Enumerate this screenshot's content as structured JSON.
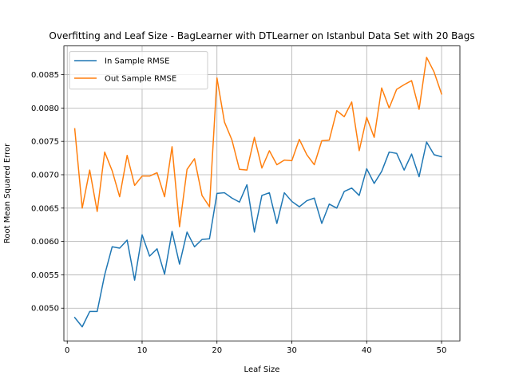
{
  "chart_data": {
    "type": "line",
    "title": "Overfitting and Leaf Size - BagLearner with DTLearner on Istanbul Data Set with 20 Bags",
    "xlabel": "Leaf Size",
    "ylabel": "Root Mean Squared Error",
    "xlim": [
      -0.45,
      52.45
    ],
    "ylim": [
      0.00451,
      0.00893
    ],
    "xticks": [
      0,
      10,
      20,
      30,
      40,
      50
    ],
    "yticks": [
      0.005,
      0.0055,
      0.006,
      0.0065,
      0.007,
      0.0075,
      0.008,
      0.0085
    ],
    "ytick_labels": [
      "0.0050",
      "0.0055",
      "0.0060",
      "0.0065",
      "0.0070",
      "0.0075",
      "0.0080",
      "0.0085"
    ],
    "grid": true,
    "legend_position": "top-left",
    "x": [
      1,
      2,
      3,
      4,
      5,
      6,
      7,
      8,
      9,
      10,
      11,
      12,
      13,
      14,
      15,
      16,
      17,
      18,
      19,
      20,
      21,
      22,
      23,
      24,
      25,
      26,
      27,
      28,
      29,
      30,
      31,
      32,
      33,
      34,
      35,
      36,
      37,
      38,
      39,
      40,
      41,
      42,
      43,
      44,
      45,
      46,
      47,
      48,
      49,
      50
    ],
    "series": [
      {
        "name": "In Sample RMSE",
        "color": "#1f77b4",
        "values": [
          0.00486,
          0.00472,
          0.00495,
          0.00495,
          0.0055,
          0.00592,
          0.0059,
          0.00602,
          0.00542,
          0.0061,
          0.00578,
          0.00589,
          0.00551,
          0.00615,
          0.00566,
          0.00614,
          0.00592,
          0.00603,
          0.00604,
          0.00672,
          0.00673,
          0.00665,
          0.00659,
          0.00685,
          0.00614,
          0.00669,
          0.00673,
          0.00627,
          0.00673,
          0.0066,
          0.00652,
          0.00661,
          0.00665,
          0.00627,
          0.00656,
          0.0065,
          0.00675,
          0.0068,
          0.00669,
          0.00709,
          0.00687,
          0.00705,
          0.00734,
          0.00732,
          0.00707,
          0.00731,
          0.00697,
          0.00749,
          0.0073,
          0.00727
        ]
      },
      {
        "name": "Out Sample RMSE",
        "color": "#ff7f0e",
        "values": [
          0.00769,
          0.0065,
          0.00707,
          0.00645,
          0.00734,
          0.00706,
          0.00667,
          0.00729,
          0.00684,
          0.00698,
          0.00698,
          0.00703,
          0.00667,
          0.00742,
          0.00622,
          0.00708,
          0.00724,
          0.00669,
          0.00652,
          0.00845,
          0.00779,
          0.00752,
          0.00708,
          0.00707,
          0.00756,
          0.0071,
          0.00736,
          0.00715,
          0.00722,
          0.00721,
          0.00753,
          0.0073,
          0.00715,
          0.00751,
          0.00752,
          0.00796,
          0.00787,
          0.00809,
          0.00736,
          0.00786,
          0.00756,
          0.0083,
          0.008,
          0.00828,
          0.00835,
          0.00841,
          0.00798,
          0.00876,
          0.00854,
          0.00821
        ]
      }
    ]
  }
}
